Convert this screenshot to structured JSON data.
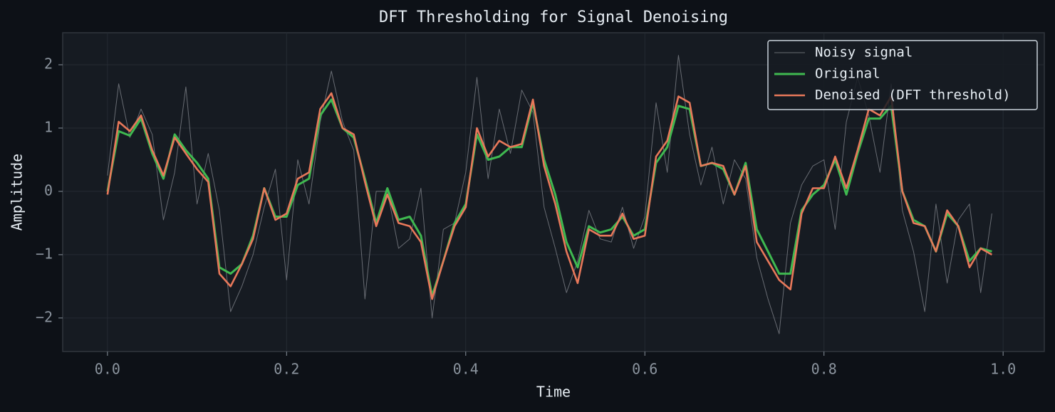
{
  "chart_data": {
    "type": "line",
    "title": "DFT Thresholding for Signal Denoising",
    "x_label": "Time",
    "y_label": "Amplitude",
    "x": [
      0,
      0.0125,
      0.025,
      0.0375,
      0.05,
      0.0625,
      0.075,
      0.0875,
      0.1,
      0.1125,
      0.125,
      0.1375,
      0.15,
      0.1625,
      0.175,
      0.1875,
      0.2,
      0.2125,
      0.225,
      0.2375,
      0.25,
      0.2625,
      0.275,
      0.2875,
      0.3,
      0.3125,
      0.325,
      0.3375,
      0.35,
      0.3625,
      0.375,
      0.3875,
      0.4,
      0.4125,
      0.425,
      0.4375,
      0.45,
      0.4625,
      0.475,
      0.4875,
      0.5,
      0.5125,
      0.525,
      0.5375,
      0.55,
      0.5625,
      0.575,
      0.5875,
      0.6,
      0.6125,
      0.625,
      0.6375,
      0.65,
      0.6625,
      0.675,
      0.6875,
      0.7,
      0.7125,
      0.725,
      0.7375,
      0.75,
      0.7625,
      0.775,
      0.7875,
      0.8,
      0.8125,
      0.825,
      0.8375,
      0.85,
      0.8625,
      0.875,
      0.8875,
      0.9,
      0.9125,
      0.925,
      0.9375,
      0.95,
      0.9625,
      0.975,
      0.9875
    ],
    "series": [
      {
        "name": "Noisy signal",
        "color": "#8b8f96",
        "values": [
          0.25,
          1.7,
          0.85,
          1.3,
          0.9,
          -0.45,
          0.3,
          1.65,
          -0.2,
          0.6,
          -0.3,
          -1.9,
          -1.5,
          -1.0,
          -0.25,
          0.35,
          -1.4,
          0.5,
          -0.2,
          1.1,
          1.9,
          1.1,
          0.65,
          -1.7,
          0.0,
          0.0,
          -0.9,
          -0.75,
          0.05,
          -2.0,
          -0.6,
          -0.5,
          0.3,
          1.8,
          0.2,
          1.3,
          0.6,
          1.6,
          1.25,
          -0.25,
          -0.9,
          -1.6,
          -1.1,
          -0.3,
          -0.75,
          -0.8,
          -0.25,
          -0.9,
          -0.4,
          1.4,
          0.3,
          2.15,
          0.9,
          0.1,
          0.7,
          -0.2,
          0.5,
          0.2,
          -1.05,
          -1.7,
          -2.25,
          -0.5,
          0.1,
          0.4,
          0.5,
          -0.6,
          1.1,
          1.8,
          1.2,
          0.3,
          1.7,
          -0.3,
          -0.95,
          -1.9,
          -0.2,
          -1.45,
          -0.45,
          -0.2,
          -1.6,
          -0.35
        ]
      },
      {
        "name": "Original",
        "color": "#3fb950",
        "values": [
          0,
          0.95,
          0.88,
          1.15,
          0.6,
          0.2,
          0.9,
          0.65,
          0.45,
          0.2,
          -1.2,
          -1.3,
          -1.15,
          -0.7,
          0.05,
          -0.4,
          -0.4,
          0.1,
          0.2,
          1.2,
          1.45,
          1.0,
          0.85,
          0.2,
          -0.5,
          0.05,
          -0.45,
          -0.4,
          -0.7,
          -1.65,
          -1.1,
          -0.5,
          -0.2,
          0.9,
          0.5,
          0.55,
          0.7,
          0.7,
          1.4,
          0.5,
          -0.05,
          -0.8,
          -1.2,
          -0.55,
          -0.65,
          -0.6,
          -0.4,
          -0.7,
          -0.6,
          0.45,
          0.7,
          1.35,
          1.3,
          0.4,
          0.45,
          0.35,
          -0.05,
          0.45,
          -0.6,
          -0.95,
          -1.3,
          -1.3,
          -0.3,
          -0.05,
          0.1,
          0.5,
          -0.05,
          0.6,
          1.15,
          1.15,
          1.35,
          0.0,
          -0.45,
          -0.55,
          -0.95,
          -0.35,
          -0.55,
          -1.1,
          -0.9,
          -0.95
        ]
      },
      {
        "name": "Denoised (DFT threshold)",
        "color": "#e8785a",
        "values": [
          -0.05,
          1.1,
          0.95,
          1.2,
          0.65,
          0.25,
          0.85,
          0.6,
          0.35,
          0.15,
          -1.3,
          -1.5,
          -1.15,
          -0.75,
          0.05,
          -0.45,
          -0.35,
          0.2,
          0.3,
          1.3,
          1.55,
          1.0,
          0.9,
          0.15,
          -0.55,
          -0.05,
          -0.5,
          -0.55,
          -0.8,
          -1.7,
          -1.1,
          -0.55,
          -0.25,
          1.0,
          0.55,
          0.8,
          0.7,
          0.75,
          1.45,
          0.4,
          -0.2,
          -0.95,
          -1.45,
          -0.6,
          -0.7,
          -0.7,
          -0.35,
          -0.75,
          -0.7,
          0.55,
          0.8,
          1.5,
          1.4,
          0.4,
          0.45,
          0.4,
          -0.05,
          0.4,
          -0.8,
          -1.1,
          -1.4,
          -1.55,
          -0.35,
          0.05,
          0.05,
          0.55,
          0.05,
          0.65,
          1.3,
          1.2,
          1.5,
          0.0,
          -0.5,
          -0.55,
          -0.95,
          -0.3,
          -0.55,
          -1.2,
          -0.9,
          -1.0
        ]
      }
    ],
    "xlim": [
      -0.05,
      1.046
    ],
    "ylim": [
      -2.53,
      2.506
    ],
    "xticks": [
      {
        "value": 0,
        "label": "0.0"
      },
      0.2,
      0.4,
      0.6,
      0.8,
      {
        "value": 1,
        "label": "1.0"
      }
    ],
    "yticks": [
      {
        "value": -2,
        "label": "−2"
      },
      {
        "value": -1,
        "label": "−1"
      },
      0,
      1,
      2
    ],
    "grid": true,
    "legend": "upper right"
  }
}
